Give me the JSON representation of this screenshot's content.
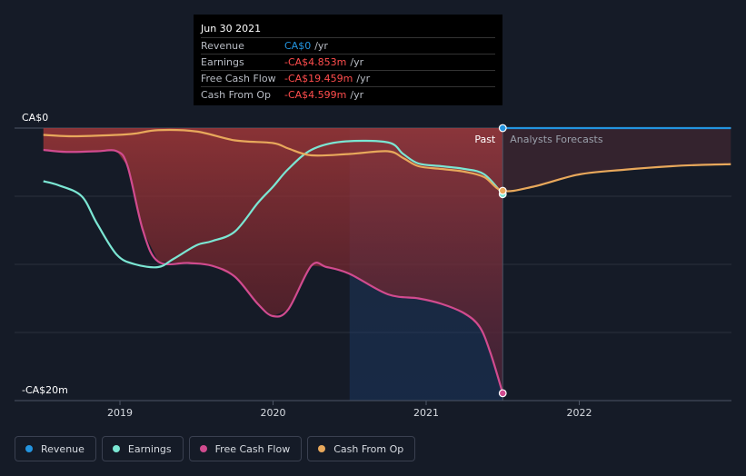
{
  "chart_data": {
    "type": "line",
    "ylim": [
      -20,
      0
    ],
    "y_tick_labels": [
      "CA$0",
      "-CA$20m"
    ],
    "x_tick_labels": [
      "2019",
      "2020",
      "2021",
      "2022"
    ],
    "past_label": "Past",
    "forecast_label": "Analysts Forecasts",
    "series": [
      {
        "name": "Revenue",
        "color": "#2394df",
        "points": [
          [
            2021.5,
            0
          ],
          [
            2022.0,
            0
          ],
          [
            2022.5,
            0
          ],
          [
            2022.99,
            0
          ]
        ]
      },
      {
        "name": "Earnings",
        "color": "#7be6d3",
        "points": [
          [
            2018.5,
            -3.9
          ],
          [
            2018.6,
            -4.2
          ],
          [
            2018.75,
            -5.0
          ],
          [
            2018.85,
            -7.0
          ],
          [
            2018.98,
            -9.3
          ],
          [
            2019.1,
            -10.0
          ],
          [
            2019.25,
            -10.2
          ],
          [
            2019.35,
            -9.6
          ],
          [
            2019.5,
            -8.6
          ],
          [
            2019.6,
            -8.3
          ],
          [
            2019.75,
            -7.6
          ],
          [
            2019.9,
            -5.5
          ],
          [
            2020.0,
            -4.3
          ],
          [
            2020.1,
            -3.0
          ],
          [
            2020.25,
            -1.6
          ],
          [
            2020.45,
            -1.0
          ],
          [
            2020.75,
            -1.05
          ],
          [
            2020.85,
            -1.9
          ],
          [
            2020.95,
            -2.6
          ],
          [
            2021.1,
            -2.8
          ],
          [
            2021.25,
            -3.0
          ],
          [
            2021.38,
            -3.4
          ],
          [
            2021.5,
            -4.853
          ]
        ]
      },
      {
        "name": "Free Cash Flow",
        "color": "#d14b8f",
        "points": [
          [
            2018.5,
            -1.6
          ],
          [
            2018.65,
            -1.75
          ],
          [
            2018.85,
            -1.7
          ],
          [
            2018.98,
            -1.7
          ],
          [
            2019.05,
            -2.8
          ],
          [
            2019.15,
            -7.5
          ],
          [
            2019.25,
            -9.8
          ],
          [
            2019.45,
            -9.9
          ],
          [
            2019.6,
            -10.1
          ],
          [
            2019.75,
            -10.9
          ],
          [
            2019.9,
            -12.9
          ],
          [
            2020.0,
            -13.8
          ],
          [
            2020.1,
            -13.3
          ],
          [
            2020.25,
            -10.1
          ],
          [
            2020.35,
            -10.2
          ],
          [
            2020.5,
            -10.7
          ],
          [
            2020.75,
            -12.2
          ],
          [
            2020.95,
            -12.5
          ],
          [
            2021.1,
            -12.9
          ],
          [
            2021.25,
            -13.6
          ],
          [
            2021.35,
            -14.6
          ],
          [
            2021.42,
            -16.5
          ],
          [
            2021.5,
            -19.459
          ]
        ]
      },
      {
        "name": "Cash From Op",
        "color": "#e8a85b",
        "points": [
          [
            2018.5,
            -0.5
          ],
          [
            2018.7,
            -0.6
          ],
          [
            2018.98,
            -0.5
          ],
          [
            2019.1,
            -0.4
          ],
          [
            2019.25,
            -0.15
          ],
          [
            2019.5,
            -0.25
          ],
          [
            2019.75,
            -0.9
          ],
          [
            2020.0,
            -1.1
          ],
          [
            2020.1,
            -1.5
          ],
          [
            2020.25,
            -2.0
          ],
          [
            2020.5,
            -1.9
          ],
          [
            2020.75,
            -1.7
          ],
          [
            2020.85,
            -2.2
          ],
          [
            2020.95,
            -2.8
          ],
          [
            2021.1,
            -3.0
          ],
          [
            2021.25,
            -3.2
          ],
          [
            2021.38,
            -3.6
          ],
          [
            2021.5,
            -4.599
          ],
          [
            2021.7,
            -4.3
          ],
          [
            2022.0,
            -3.4
          ],
          [
            2022.3,
            -3.05
          ],
          [
            2022.6,
            -2.8
          ],
          [
            2022.8,
            -2.7
          ],
          [
            2022.99,
            -2.65
          ]
        ]
      }
    ],
    "tooltip": {
      "date": "Jun 30 2021",
      "rows": [
        {
          "label": "Revenue",
          "value": "CA$0",
          "unit": "/yr",
          "color": "#2394df"
        },
        {
          "label": "Earnings",
          "value": "-CA$4.853m",
          "unit": "/yr",
          "color": "#ff4d4d"
        },
        {
          "label": "Free Cash Flow",
          "value": "-CA$19.459m",
          "unit": "/yr",
          "color": "#ff4d4d"
        },
        {
          "label": "Cash From Op",
          "value": "-CA$4.599m",
          "unit": "/yr",
          "color": "#ff4d4d"
        }
      ]
    },
    "grid": true,
    "legend_position": "bottom-left"
  }
}
